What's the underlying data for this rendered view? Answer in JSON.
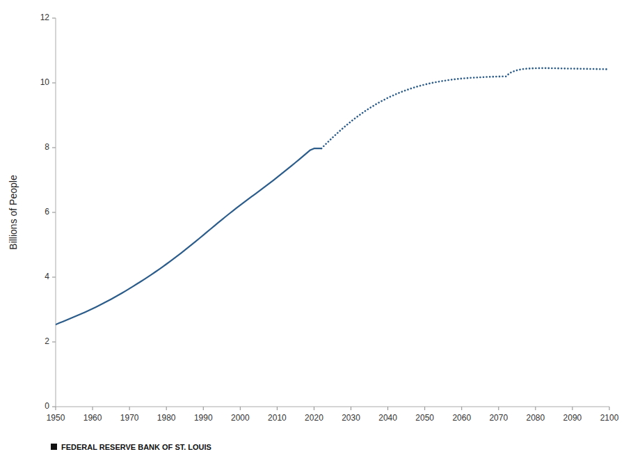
{
  "chart_data": {
    "type": "line",
    "ylabel": "Billions of People",
    "footer": "FEDERAL RESERVE BANK OF ST. LOUIS",
    "xlim": [
      1950,
      2100
    ],
    "ylim": [
      0,
      12
    ],
    "xticks": [
      1950,
      1960,
      1970,
      1980,
      1990,
      2000,
      2010,
      2020,
      2030,
      2040,
      2050,
      2060,
      2070,
      2080,
      2090,
      2100
    ],
    "yticks": [
      0,
      2,
      4,
      6,
      8,
      10,
      12
    ],
    "grid": false,
    "series": [
      {
        "color": "#2B5C8A",
        "line_style": "solid",
        "x": [
          1950,
          1951,
          1952,
          1953,
          1954,
          1955,
          1956,
          1957,
          1958,
          1959,
          1960,
          1961,
          1962,
          1963,
          1964,
          1965,
          1966,
          1967,
          1968,
          1969,
          1970,
          1971,
          1972,
          1973,
          1974,
          1975,
          1976,
          1977,
          1978,
          1979,
          1980,
          1981,
          1982,
          1983,
          1984,
          1985,
          1986,
          1987,
          1988,
          1989,
          1990,
          1991,
          1992,
          1993,
          1994,
          1995,
          1996,
          1997,
          1998,
          1999,
          2000,
          2001,
          2002,
          2003,
          2004,
          2005,
          2006,
          2007,
          2008,
          2009,
          2010,
          2011,
          2012,
          2013,
          2014,
          2015,
          2016,
          2017,
          2018,
          2019,
          2020,
          2021,
          2022
        ],
        "values": [
          2.536,
          2.584,
          2.63,
          2.677,
          2.724,
          2.772,
          2.821,
          2.871,
          2.922,
          2.974,
          3.027,
          3.082,
          3.139,
          3.197,
          3.257,
          3.319,
          3.382,
          3.446,
          3.512,
          3.579,
          3.648,
          3.719,
          3.79,
          3.861,
          3.934,
          4.009,
          4.085,
          4.162,
          4.241,
          4.321,
          4.403,
          4.487,
          4.573,
          4.659,
          4.747,
          4.836,
          4.926,
          5.018,
          5.11,
          5.204,
          5.299,
          5.394,
          5.49,
          5.585,
          5.679,
          5.773,
          5.866,
          5.957,
          6.047,
          6.135,
          6.222,
          6.309,
          6.394,
          6.479,
          6.563,
          6.647,
          6.732,
          6.818,
          6.906,
          6.994,
          7.083,
          7.173,
          7.264,
          7.356,
          7.449,
          7.543,
          7.638,
          7.733,
          7.829,
          7.926,
          7.975,
          7.975,
          7.975
        ]
      },
      {
        "color": "#2B5C8A",
        "line_style": "dotted",
        "x": [
          2022,
          2023,
          2024,
          2025,
          2026,
          2027,
          2028,
          2029,
          2030,
          2031,
          2032,
          2033,
          2034,
          2035,
          2036,
          2037,
          2038,
          2039,
          2040,
          2041,
          2042,
          2043,
          2044,
          2045,
          2046,
          2047,
          2048,
          2049,
          2050,
          2051,
          2052,
          2053,
          2054,
          2055,
          2056,
          2057,
          2058,
          2059,
          2060,
          2061,
          2062,
          2063,
          2064,
          2065,
          2066,
          2067,
          2068,
          2069,
          2070,
          2071,
          2072,
          2073,
          2074,
          2075,
          2076,
          2077,
          2078,
          2079,
          2080,
          2081,
          2082,
          2083,
          2084,
          2085,
          2086,
          2087,
          2088,
          2089,
          2090,
          2091,
          2092,
          2093,
          2094,
          2095,
          2096,
          2097,
          2098,
          2099,
          2100
        ],
        "values": [
          7.975,
          8.09,
          8.2,
          8.31,
          8.415,
          8.518,
          8.618,
          8.714,
          8.807,
          8.896,
          8.981,
          9.063,
          9.141,
          9.215,
          9.286,
          9.354,
          9.418,
          9.479,
          9.537,
          9.591,
          9.642,
          9.69,
          9.735,
          9.777,
          9.817,
          9.854,
          9.888,
          9.919,
          9.948,
          9.975,
          10.0,
          10.022,
          10.043,
          10.062,
          10.079,
          10.095,
          10.109,
          10.122,
          10.133,
          10.143,
          10.152,
          10.16,
          10.167,
          10.173,
          10.179,
          10.184,
          10.188,
          10.192,
          10.195,
          10.198,
          10.2,
          10.302,
          10.354,
          10.39,
          10.417,
          10.432,
          10.442,
          10.448,
          10.452,
          10.454,
          10.455,
          10.455,
          10.454,
          10.452,
          10.449,
          10.447,
          10.444,
          10.442,
          10.44,
          10.438,
          10.436,
          10.434,
          10.432,
          10.43,
          10.428,
          10.426,
          10.424,
          10.422,
          10.42
        ]
      }
    ]
  }
}
